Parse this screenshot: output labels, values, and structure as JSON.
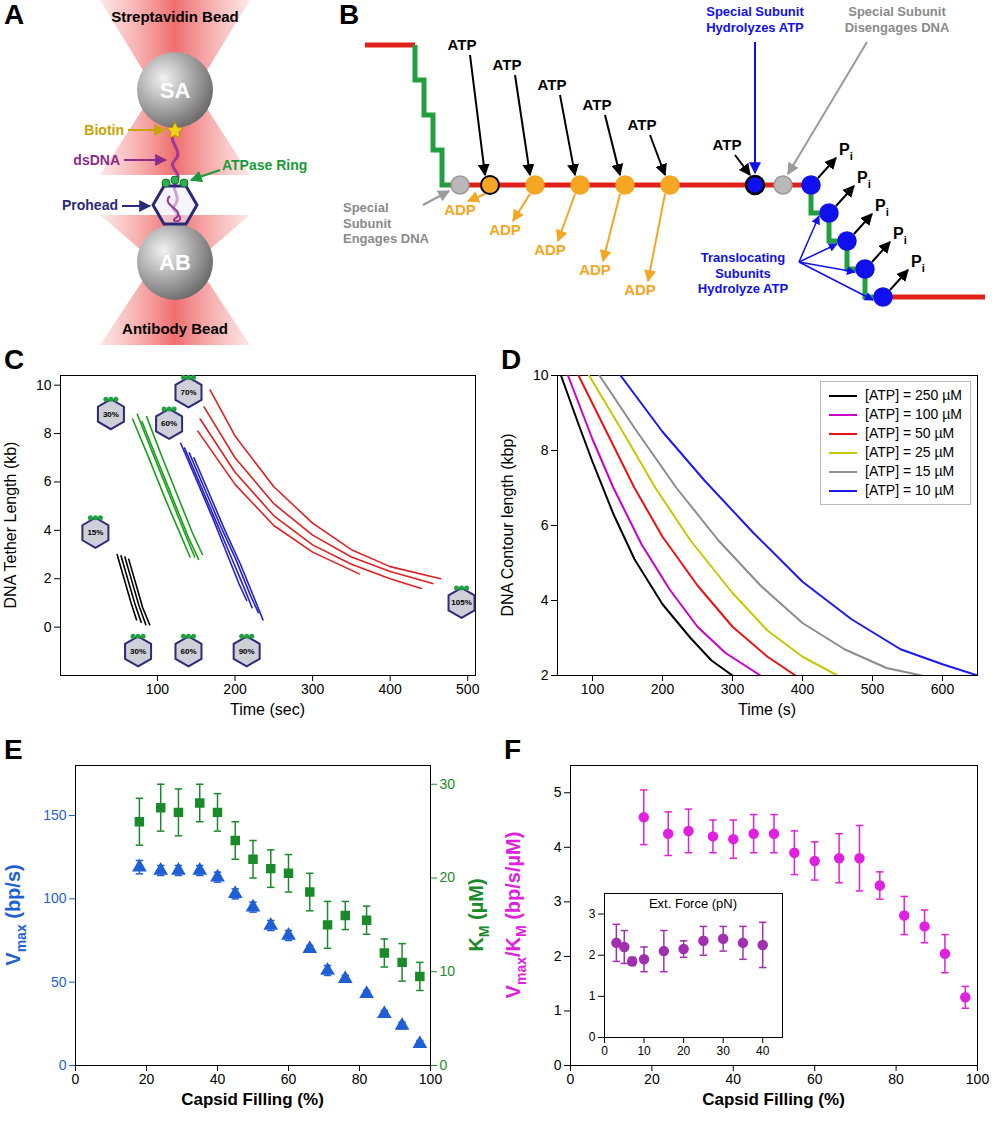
{
  "diagrams": [
    {
      "panel": "A",
      "labels": {
        "top_bead": "Streptavidin Bead",
        "top_bead_mark": "SA",
        "biotin": "Biotin",
        "dna": "dsDNA",
        "ring": "ATPase Ring",
        "prohead": "Prohead",
        "bottom_bead_mark": "AB",
        "bottom_bead": "Antibody Bead"
      }
    },
    {
      "panel": "B",
      "atp": [
        "ATP",
        "ATP",
        "ATP",
        "ATP",
        "ATP",
        "ATP"
      ],
      "adp": [
        "ADP",
        "ADP",
        "ADP",
        "ADP",
        "ADP"
      ],
      "pi": [
        [
          {
            "t": "P"
          },
          {
            "t": "i",
            "sub": true
          }
        ],
        [
          {
            "t": "P"
          },
          {
            "t": "i",
            "sub": true
          }
        ],
        [
          {
            "t": "P"
          },
          {
            "t": "i",
            "sub": true
          }
        ],
        [
          {
            "t": "P"
          },
          {
            "t": "i",
            "sub": true
          }
        ],
        [
          {
            "t": "P"
          },
          {
            "t": "i",
            "sub": true
          }
        ]
      ],
      "engages": "Special Subunit Engages DNA",
      "hydrolyzes": "Special Subunit Hydrolyzes ATP",
      "disengages": "Special Subunit Disengages DNA",
      "translocating": "Translocating Subunits Hydrolyze ATP"
    }
  ],
  "chart_data": [
    {
      "panel": "C",
      "type": "line",
      "xlabel": "Time (sec)",
      "ylabel": "DNA Tether Length (kb)",
      "xlim": [
        -25,
        510
      ],
      "ylim": [
        -2,
        10.4
      ],
      "xticks": [
        100,
        200,
        300,
        400,
        500
      ],
      "yticks": [
        0,
        2,
        4,
        6,
        8,
        10
      ],
      "series": [
        {
          "color": "#000000",
          "x": [
            48,
            57,
            66,
            73
          ],
          "values": [
            3.0,
            2.0,
            1.0,
            0.3
          ]
        },
        {
          "color": "#000000",
          "x": [
            53,
            62,
            71,
            79
          ],
          "values": [
            2.95,
            1.95,
            0.95,
            0.2
          ]
        },
        {
          "color": "#000000",
          "x": [
            58,
            67,
            76,
            85
          ],
          "values": [
            2.9,
            1.9,
            0.9,
            0.1
          ]
        },
        {
          "color": "#000000",
          "x": [
            63,
            72,
            81,
            90
          ],
          "values": [
            2.8,
            1.8,
            0.8,
            0.1
          ]
        },
        {
          "color": "#1aa01a",
          "x": [
            68,
            90,
            110,
            130,
            142
          ],
          "values": [
            8.6,
            6.9,
            5.3,
            3.8,
            2.9
          ]
        },
        {
          "color": "#1aa01a",
          "x": [
            74,
            95,
            115,
            135,
            148
          ],
          "values": [
            8.8,
            7.1,
            5.5,
            3.9,
            2.9
          ]
        },
        {
          "color": "#1aa01a",
          "x": [
            80,
            100,
            120,
            140,
            153
          ],
          "values": [
            8.5,
            6.9,
            5.3,
            3.7,
            2.8
          ]
        },
        {
          "color": "#1aa01a",
          "x": [
            86,
            105,
            125,
            145,
            158
          ],
          "values": [
            8.7,
            7.1,
            5.5,
            3.9,
            3.0
          ]
        },
        {
          "color": "#2222c8",
          "x": [
            130,
            150,
            170,
            190,
            205,
            215
          ],
          "values": [
            7.6,
            6.1,
            4.6,
            3.0,
            1.8,
            1.1
          ]
        },
        {
          "color": "#2222c8",
          "x": [
            135,
            155,
            175,
            195,
            212,
            222
          ],
          "values": [
            7.4,
            5.9,
            4.4,
            2.9,
            1.6,
            0.8
          ]
        },
        {
          "color": "#2222c8",
          "x": [
            141,
            161,
            181,
            201,
            220,
            230
          ],
          "values": [
            7.2,
            5.7,
            4.2,
            2.8,
            1.3,
            0.6
          ]
        },
        {
          "color": "#2222c8",
          "x": [
            147,
            167,
            187,
            207,
            226,
            236
          ],
          "values": [
            7.0,
            5.5,
            4.0,
            2.6,
            1.1,
            0.3
          ]
        },
        {
          "color": "#e02020",
          "x": [
            168,
            200,
            250,
            300,
            350,
            400,
            465
          ],
          "values": [
            9.8,
            7.9,
            5.8,
            4.3,
            3.2,
            2.5,
            2.0
          ]
        },
        {
          "color": "#e02020",
          "x": [
            160,
            200,
            250,
            300,
            350,
            400,
            455
          ],
          "values": [
            9.1,
            7.0,
            5.1,
            3.8,
            2.9,
            2.3,
            1.8
          ]
        },
        {
          "color": "#e02020",
          "x": [
            155,
            200,
            250,
            300,
            350,
            400,
            440
          ],
          "values": [
            8.6,
            6.4,
            4.6,
            3.4,
            2.6,
            2.0,
            1.6
          ]
        },
        {
          "color": "#e02020",
          "x": [
            152,
            200,
            250,
            300,
            360
          ],
          "values": [
            8.1,
            5.9,
            4.2,
            3.1,
            2.2
          ]
        }
      ],
      "annotations": [
        {
          "text": "15%",
          "x": 20,
          "y": 3.9
        },
        {
          "text": "30%",
          "x": 40,
          "y": 8.8
        },
        {
          "text": "60%",
          "x": 115,
          "y": 8.4
        },
        {
          "text": "70%",
          "x": 140,
          "y": 9.7
        },
        {
          "text": "30%",
          "x": 75,
          "y": -1.0
        },
        {
          "text": "60%",
          "x": 140,
          "y": -1.0
        },
        {
          "text": "90%",
          "x": 215,
          "y": -1.0
        },
        {
          "text": "105%",
          "x": 492,
          "y": 1.0
        }
      ]
    },
    {
      "panel": "D",
      "type": "line",
      "xlabel": "Time (s)",
      "ylabel": "DNA Contour length (kbp)",
      "xlim": [
        50,
        650
      ],
      "ylim": [
        2,
        10
      ],
      "xticks": [
        100,
        200,
        300,
        400,
        500,
        600
      ],
      "yticks": [
        2,
        4,
        6,
        8,
        10
      ],
      "legend": "top-right",
      "series": [
        {
          "name": "[ATP] = 250 µM",
          "color": "#000000",
          "x": [
            55,
            80,
            100,
            130,
            160,
            200,
            240,
            270,
            300
          ],
          "values": [
            10,
            8.7,
            7.7,
            6.3,
            5.1,
            3.9,
            3.0,
            2.4,
            2.0
          ]
        },
        {
          "name": "[ATP] = 100 µM",
          "color": "#cc00cc",
          "x": [
            65,
            100,
            130,
            170,
            210,
            250,
            290,
            340
          ],
          "values": [
            10,
            8.3,
            7.0,
            5.5,
            4.3,
            3.3,
            2.6,
            2.0
          ]
        },
        {
          "name": "[ATP] = 50 µM",
          "color": "#ee1111",
          "x": [
            80,
            120,
            160,
            200,
            250,
            300,
            350,
            390
          ],
          "values": [
            10,
            8.5,
            7.0,
            5.7,
            4.4,
            3.3,
            2.5,
            2.0
          ]
        },
        {
          "name": "[ATP] = 25 µM",
          "color": "#c8c800",
          "x": [
            95,
            140,
            190,
            240,
            300,
            350,
            400,
            450
          ],
          "values": [
            10,
            8.6,
            7.0,
            5.6,
            4.2,
            3.2,
            2.5,
            2.0
          ]
        },
        {
          "name": "[ATP] = 15 µM",
          "color": "#8c8c8c",
          "x": [
            110,
            160,
            220,
            280,
            340,
            400,
            460,
            520,
            570
          ],
          "values": [
            10,
            8.6,
            7.0,
            5.6,
            4.4,
            3.4,
            2.7,
            2.2,
            2.0
          ]
        },
        {
          "name": "[ATP] = 10 µM",
          "color": "#1a1aee",
          "x": [
            140,
            200,
            260,
            330,
            400,
            470,
            540,
            600,
            650
          ],
          "values": [
            10,
            8.5,
            7.2,
            5.8,
            4.5,
            3.5,
            2.7,
            2.3,
            2.0
          ]
        }
      ]
    },
    {
      "panel": "E",
      "type": "scatter",
      "xlabel": "Capsid Filling (%)",
      "ylabel": [
        {
          "t": "V"
        },
        {
          "t": "max",
          "sub": true
        },
        {
          "t": " (bp/s)"
        }
      ],
      "y2label": [
        {
          "t": "K"
        },
        {
          "t": "M",
          "sub": true
        },
        {
          "t": " (µM)"
        }
      ],
      "xlim": [
        0,
        100
      ],
      "ylim": [
        0,
        180
      ],
      "y2lim": [
        0,
        32
      ],
      "xticks": [
        0,
        20,
        40,
        60,
        80,
        100
      ],
      "yticks": [
        0,
        50,
        100,
        150
      ],
      "y2ticks": [
        0,
        10,
        20,
        30
      ],
      "x": [
        18,
        24,
        29,
        35,
        40,
        45,
        50,
        55,
        60,
        66,
        71,
        76,
        82,
        87,
        92,
        97
      ],
      "series": [
        {
          "axis": "y",
          "color": "#1f5fd6",
          "marker": "triangle",
          "values": [
            119,
            117,
            117,
            117,
            113,
            103,
            95,
            84,
            78,
            70,
            57,
            52,
            43,
            31,
            24,
            13
          ],
          "errors": [
            4,
            3,
            3,
            3,
            3,
            3,
            3,
            3,
            3,
            2,
            3,
            2,
            2,
            2,
            2,
            2
          ]
        },
        {
          "axis": "y2",
          "color": "#1a8a2a",
          "marker": "square",
          "values": [
            26,
            27.5,
            27,
            28,
            27,
            24,
            22,
            21,
            20.5,
            18.5,
            15,
            16,
            15.5,
            12,
            11,
            9.5
          ],
          "errors": [
            2.5,
            2.5,
            2.5,
            2,
            2,
            2,
            2,
            2,
            2,
            2,
            2.5,
            1.5,
            1.5,
            1.5,
            2,
            1.5
          ]
        }
      ]
    },
    {
      "panel": "F",
      "type": "scatter",
      "xlabel": "Capsid Filling (%)",
      "ylabel": [
        {
          "t": "V"
        },
        {
          "t": "max",
          "sub": true
        },
        {
          "t": "/K"
        },
        {
          "t": "M",
          "sub": true
        },
        {
          "t": " (bp/s/µM)"
        }
      ],
      "xlim": [
        0,
        100
      ],
      "ylim": [
        0,
        5.5
      ],
      "xticks": [
        0,
        20,
        40,
        60,
        80,
        100
      ],
      "yticks": [
        0,
        1,
        2,
        3,
        4,
        5
      ],
      "color": "#e020e0",
      "marker": "circle",
      "x": [
        18,
        24,
        29,
        35,
        40,
        45,
        50,
        55,
        60,
        66,
        71,
        76,
        82,
        87,
        92,
        97
      ],
      "values": [
        4.55,
        4.25,
        4.3,
        4.2,
        4.15,
        4.25,
        4.25,
        3.9,
        3.75,
        3.8,
        3.8,
        3.3,
        2.75,
        2.55,
        2.05,
        1.25
      ],
      "errors": [
        0.5,
        0.4,
        0.4,
        0.3,
        0.35,
        0.35,
        0.35,
        0.4,
        0.35,
        0.45,
        0.6,
        0.25,
        0.35,
        0.3,
        0.35,
        0.2
      ],
      "inset": {
        "xlabel": "Ext. Force (pN)",
        "xlim": [
          0,
          45
        ],
        "ylim": [
          0,
          3.5
        ],
        "xticks": [
          0,
          10,
          20,
          30,
          40
        ],
        "yticks": [
          0,
          1,
          2,
          3
        ],
        "color": "#a030b0",
        "marker": "circle",
        "x": [
          3,
          5,
          7,
          10,
          15,
          20,
          25,
          30,
          35,
          40
        ],
        "values": [
          2.3,
          2.2,
          1.85,
          1.9,
          2.1,
          2.15,
          2.35,
          2.4,
          2.3,
          2.25
        ],
        "errors": [
          0.45,
          0.4,
          0.1,
          0.3,
          0.5,
          0.2,
          0.35,
          0.3,
          0.4,
          0.55
        ]
      }
    }
  ]
}
